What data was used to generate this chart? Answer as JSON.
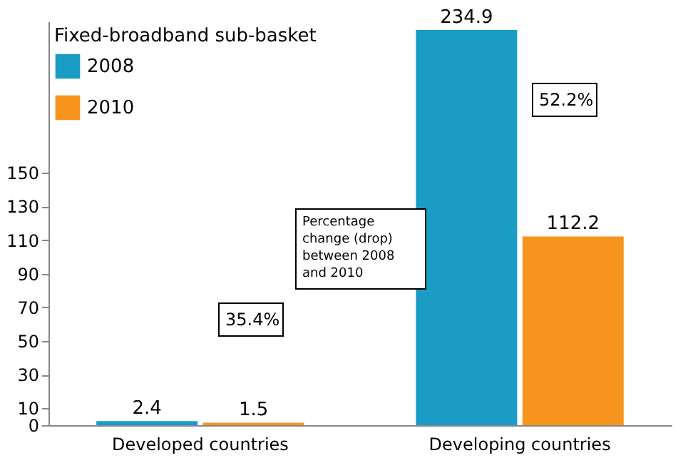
{
  "chart_data": {
    "type": "bar",
    "categories": [
      "Developed countries",
      "Developing countries"
    ],
    "series": [
      {
        "name": "2008",
        "color": "#1a9cc4",
        "values": [
          2.4,
          234.9
        ]
      },
      {
        "name": "2010",
        "color": "#f7941d",
        "values": [
          1.5,
          112.2
        ]
      }
    ],
    "legend_title": "Fixed-broadband sub-basket",
    "legend": "top left",
    "data_labels": true,
    "grid": false,
    "ylim": [
      0,
      240
    ],
    "yticks": [
      0,
      10,
      30,
      50,
      70,
      90,
      110,
      130,
      150
    ],
    "annotations": [
      "35.4%",
      "52.2%",
      "Percentage change (drop) between 2008 and 2010"
    ]
  }
}
